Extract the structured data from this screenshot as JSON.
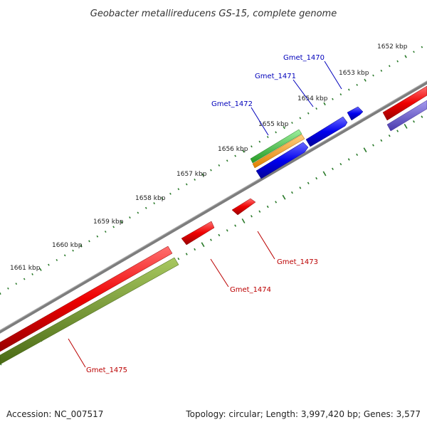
{
  "title": "Geobacter metallireducens GS-15, complete genome",
  "footer": {
    "accession": "Accession: NC_007517",
    "summary": "Topology: circular; Length: 3,997,420 bp; Genes: 3,577"
  },
  "colors": {
    "forward_cds": "#0000ee",
    "reverse_cds": "#ee0000",
    "forward_label": "#0000bb",
    "reverse_label": "#bb0000",
    "backbone": "#808080",
    "tick": "#2a7a2a",
    "rna": "#33bb33",
    "orange_track": "#ff9900",
    "olive_track": "#6b8e23",
    "purple_track": "#6a5acd"
  },
  "scale": {
    "ticks": [
      "1652 kbp",
      "1653 kbp",
      "1654 kbp",
      "1655 kbp",
      "1656 kbp",
      "1657 kbp",
      "1658 kbp",
      "1659 kbp",
      "1660 kbp",
      "1661 kbp"
    ]
  },
  "genes": {
    "forward": [
      "Gmet_1470",
      "Gmet_1471",
      "Gmet_1472"
    ],
    "reverse": [
      "Gmet_1473",
      "Gmet_1474",
      "Gmet_1475"
    ]
  }
}
